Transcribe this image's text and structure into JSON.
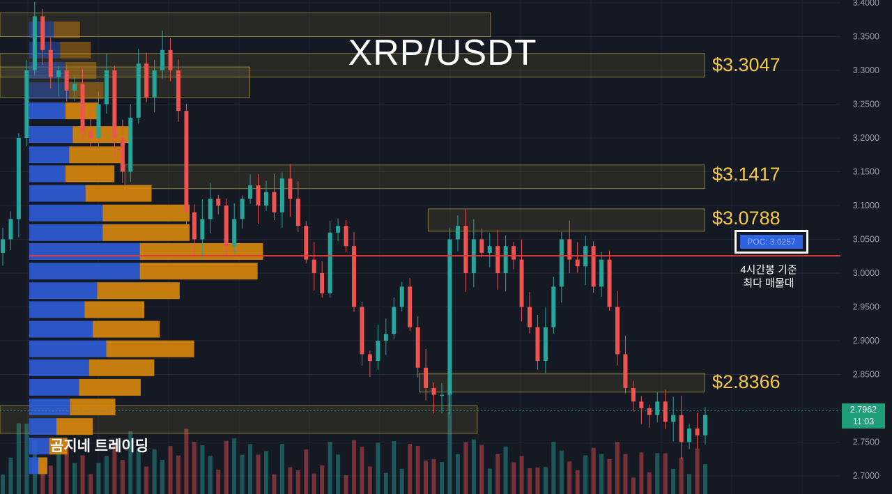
{
  "title": "XRP/USDT",
  "watermark": "곰지네 트레이딩",
  "levels": [
    "$3.3047",
    "$3.1417",
    "$3.0788",
    "$2.8366"
  ],
  "poc": {
    "label": "POC: 3.0257",
    "value": 3.0257,
    "color": "#e53935"
  },
  "poc_note": [
    "4시간봉 기준",
    "최다 매물대"
  ],
  "current_price": {
    "price": "2.7962",
    "countdown": "11:03"
  },
  "colors": {
    "up": "#26a69a",
    "down": "#ef5350",
    "zone": "#b5a642",
    "vol_blue": "#2f5bd4",
    "vol_orange": "#d6860e",
    "level_text": "#f7c948"
  },
  "chart_data": {
    "type": "candlestick",
    "title": "XRP/USDT",
    "y_axis": {
      "ylim": [
        2.69,
        3.4
      ],
      "ticks": [
        "3.4000",
        "3.3500",
        "3.3000",
        "3.2500",
        "3.2000",
        "3.1500",
        "3.1000",
        "3.0500",
        "3.0000",
        "2.9500",
        "2.9000",
        "2.8500",
        "2.8000",
        "2.7500",
        "2.7000"
      ]
    },
    "levels": [
      3.3047,
      3.1417,
      3.0788,
      2.8366
    ],
    "poc": 3.0257,
    "zones": [
      {
        "top": 3.385,
        "bottom": 3.35,
        "from": 0.0,
        "to": 0.55
      },
      {
        "top": 3.325,
        "bottom": 3.29,
        "from": 0.0,
        "to": 0.79
      },
      {
        "top": 3.305,
        "bottom": 3.26,
        "from": 0.0,
        "to": 0.28
      },
      {
        "top": 3.16,
        "bottom": 3.125,
        "from": 0.14,
        "to": 0.79
      },
      {
        "top": 3.095,
        "bottom": 3.062,
        "from": 0.48,
        "to": 0.79
      },
      {
        "top": 2.852,
        "bottom": 2.824,
        "from": 0.47,
        "to": 0.79
      },
      {
        "top": 2.804,
        "bottom": 2.763,
        "from": 0.0,
        "to": 0.535
      }
    ],
    "volume_profile": [
      {
        "price": 3.36,
        "buy": 0.27,
        "sell": 0.29
      },
      {
        "price": 3.33,
        "buy": 0.34,
        "sell": 0.34
      },
      {
        "price": 3.3,
        "buy": 0.4,
        "sell": 0.34
      },
      {
        "price": 3.27,
        "buy": 0.44,
        "sell": 0.38
      },
      {
        "price": 3.24,
        "buy": 0.4,
        "sell": 0.36
      },
      {
        "price": 3.205,
        "buy": 0.48,
        "sell": 0.64
      },
      {
        "price": 3.175,
        "buy": 0.44,
        "sell": 0.58
      },
      {
        "price": 3.147,
        "buy": 0.4,
        "sell": 0.54
      },
      {
        "price": 3.118,
        "buy": 0.62,
        "sell": 0.73
      },
      {
        "price": 3.089,
        "buy": 0.81,
        "sell": 0.96
      },
      {
        "price": 3.06,
        "buy": 0.81,
        "sell": 0.96
      },
      {
        "price": 3.032,
        "buy": 1.22,
        "sell": 1.36
      },
      {
        "price": 3.003,
        "buy": 1.22,
        "sell": 1.3
      },
      {
        "price": 2.974,
        "buy": 0.75,
        "sell": 0.91
      },
      {
        "price": 2.946,
        "buy": 0.61,
        "sell": 0.66
      },
      {
        "price": 2.917,
        "buy": 0.7,
        "sell": 0.74
      },
      {
        "price": 2.888,
        "buy": 0.85,
        "sell": 0.97
      },
      {
        "price": 2.86,
        "buy": 0.66,
        "sell": 0.72
      },
      {
        "price": 2.831,
        "buy": 0.55,
        "sell": 0.68
      },
      {
        "price": 2.802,
        "buy": 0.45,
        "sell": 0.5
      },
      {
        "price": 2.773,
        "buy": 0.3,
        "sell": 0.4
      },
      {
        "price": 2.744,
        "buy": 0.22,
        "sell": 0.2
      },
      {
        "price": 2.715,
        "buy": 0.1,
        "sell": 0.1
      }
    ],
    "close_path": [
      3.05,
      3.08,
      3.2,
      3.3,
      3.38,
      3.33,
      3.29,
      3.3,
      3.27,
      3.28,
      3.21,
      3.2,
      3.25,
      3.3,
      3.2,
      3.15,
      3.23,
      3.31,
      3.26,
      3.3,
      3.33,
      3.3,
      3.24,
      3.09,
      3.05,
      3.08,
      3.11,
      3.1,
      3.04,
      3.08,
      3.11,
      3.13,
      3.1,
      3.12,
      3.09,
      3.14,
      3.11,
      3.07,
      3.02,
      3.0,
      2.97,
      3.06,
      3.07,
      3.04,
      2.95,
      2.88,
      2.87,
      2.9,
      2.91,
      2.95,
      2.98,
      2.92,
      2.86,
      2.83,
      2.82,
      2.82,
      3.05,
      3.07,
      3.0,
      3.05,
      3.03,
      3.04,
      3.0,
      3.04,
      3.02,
      2.95,
      2.92,
      2.87,
      2.92,
      2.98,
      3.05,
      3.02,
      3.01,
      3.04,
      2.98,
      3.02,
      2.95,
      2.88,
      2.83,
      2.81,
      2.8,
      2.79,
      2.81,
      2.78,
      2.79,
      2.75,
      2.77,
      2.76,
      2.79
    ]
  }
}
